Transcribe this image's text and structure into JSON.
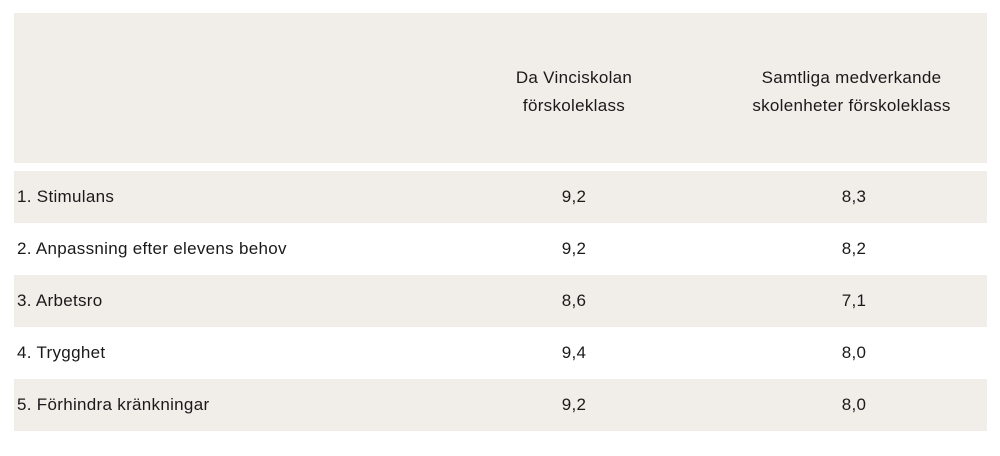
{
  "table": {
    "columns": [
      {
        "line1": "Da Vinciskolan",
        "line2": "förskoleklass"
      },
      {
        "line1": "Samtliga medverkande",
        "line2": "skolenheter förskoleklass"
      }
    ],
    "rows": [
      {
        "label": "1. Stimulans",
        "v1": "9,2",
        "v2": "8,3"
      },
      {
        "label": "2. Anpassning efter elevens behov",
        "v1": "9,2",
        "v2": "8,2"
      },
      {
        "label": "3. Arbetsro",
        "v1": "8,6",
        "v2": "7,1"
      },
      {
        "label": "4. Trygghet",
        "v1": "9,4",
        "v2": "8,0"
      },
      {
        "label": "5. Förhindra kränkningar",
        "v1": "9,2",
        "v2": "8,0"
      }
    ]
  },
  "colors": {
    "header_bg": "#f1ede8",
    "row_shaded_bg": "#f1ede8",
    "row_plain_bg": "#ffffff"
  }
}
